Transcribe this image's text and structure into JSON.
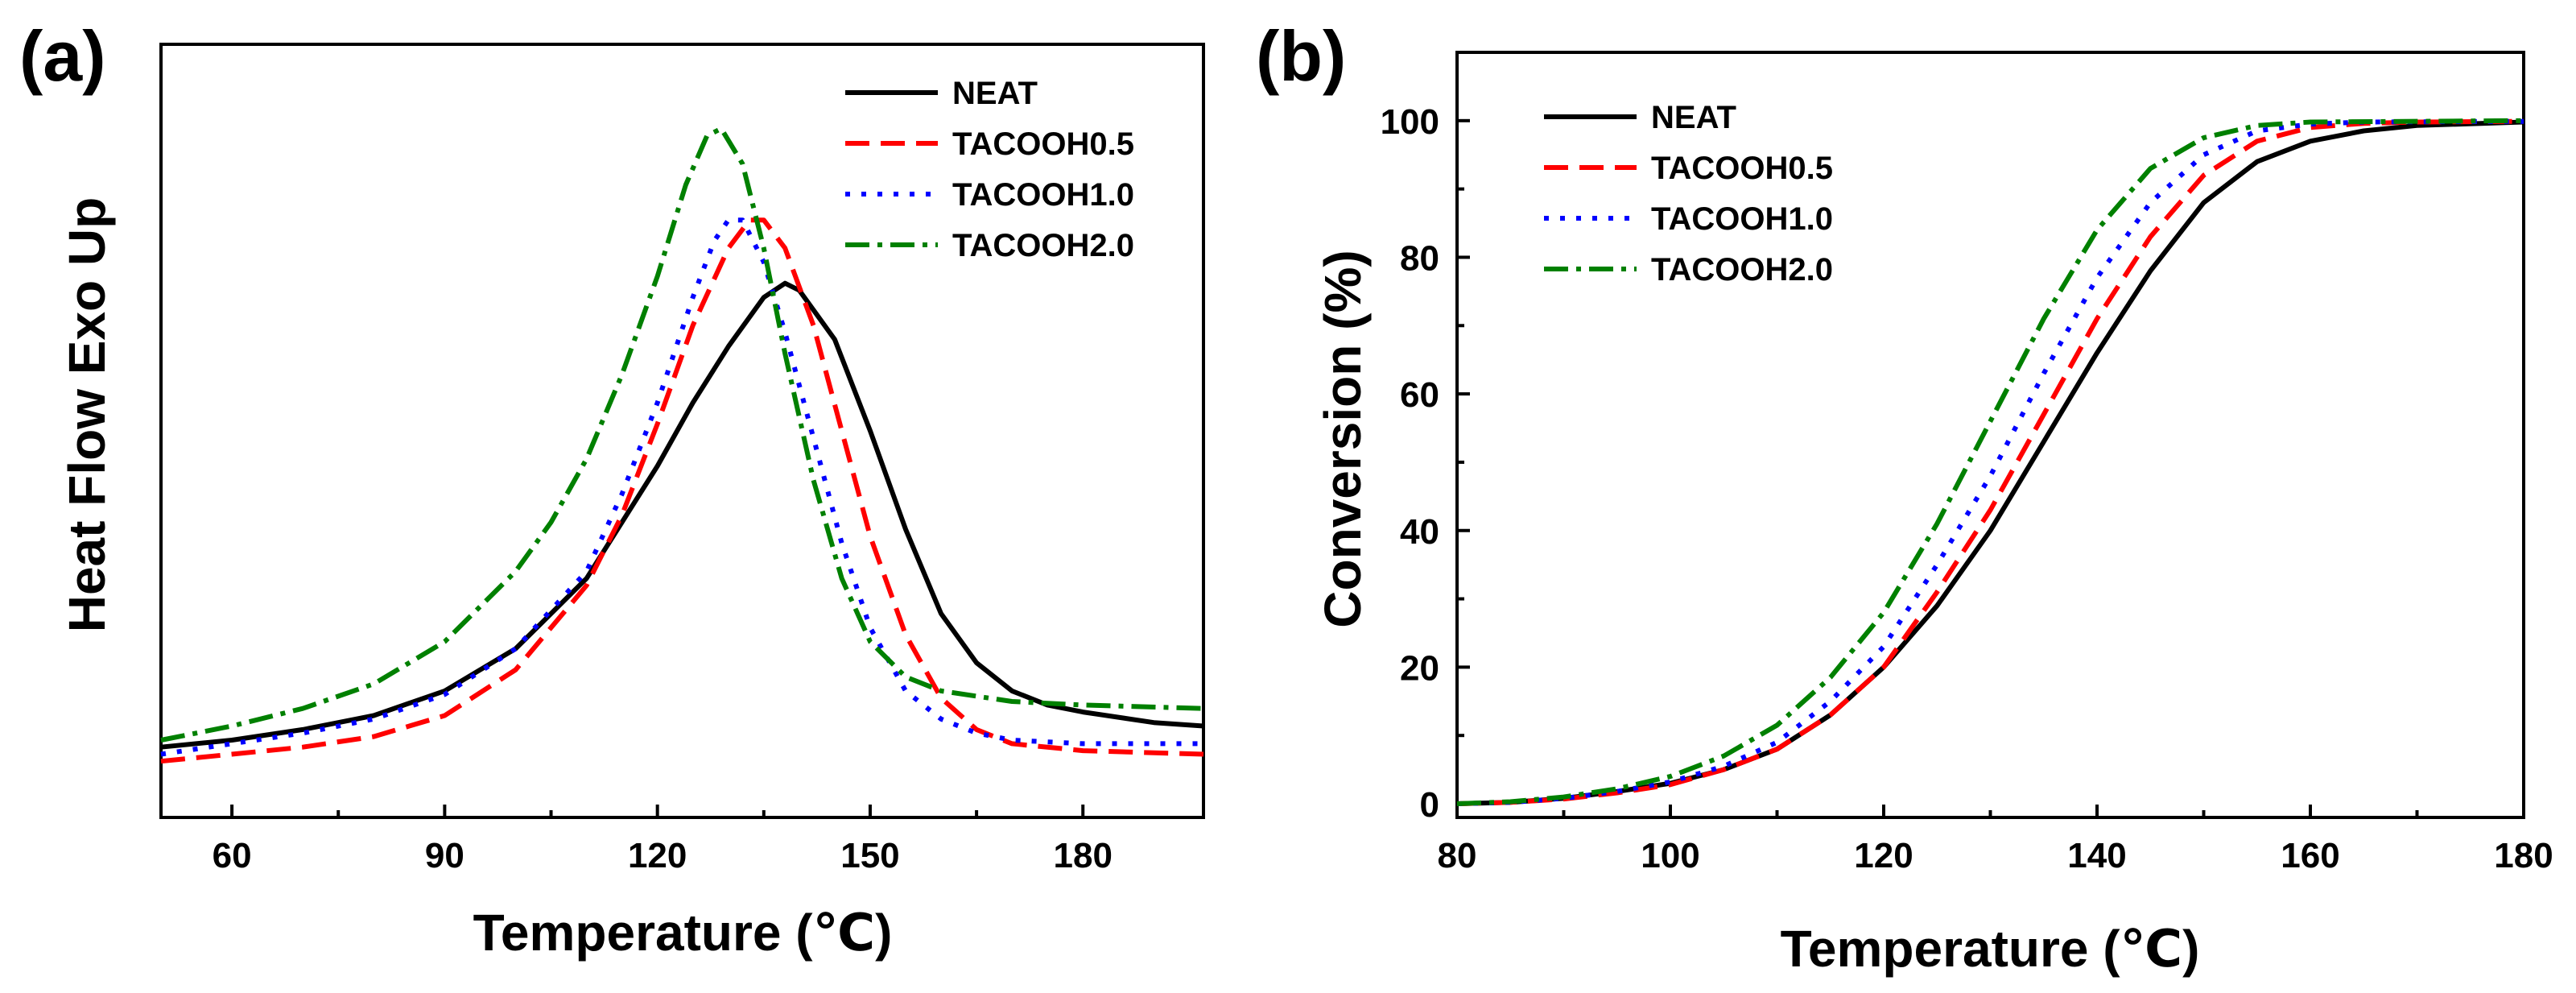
{
  "figure": {
    "colors": {
      "NEAT": "#000000",
      "TACOOH0.5": "#ff0000",
      "TACOOH1.0": "#0000ff",
      "TACOOH2.0": "#008000"
    }
  },
  "chart_data": [
    {
      "type": "line",
      "panel_label": "(a)",
      "title": "",
      "xlabel": "Temperature (℃)",
      "ylabel": "Heat Flow Exo Up",
      "xlim": [
        50,
        197
      ],
      "ylim": [
        -0.08,
        1.02
      ],
      "xticks": [
        60,
        90,
        120,
        150,
        180
      ],
      "yticks": [],
      "grid": false,
      "legend_position": "top-right",
      "series": [
        {
          "name": "NEAT",
          "style": "solid",
          "color": "#000000",
          "points": [
            [
              50,
              0.02
            ],
            [
              60,
              0.03
            ],
            [
              70,
              0.045
            ],
            [
              80,
              0.065
            ],
            [
              90,
              0.1
            ],
            [
              100,
              0.16
            ],
            [
              110,
              0.26
            ],
            [
              120,
              0.42
            ],
            [
              125,
              0.51
            ],
            [
              130,
              0.59
            ],
            [
              135,
              0.66
            ],
            [
              138,
              0.68
            ],
            [
              140,
              0.67
            ],
            [
              145,
              0.6
            ],
            [
              150,
              0.47
            ],
            [
              155,
              0.33
            ],
            [
              160,
              0.21
            ],
            [
              165,
              0.14
            ],
            [
              170,
              0.1
            ],
            [
              175,
              0.08
            ],
            [
              180,
              0.07
            ],
            [
              190,
              0.055
            ],
            [
              197,
              0.05
            ]
          ]
        },
        {
          "name": "TACOOH0.5",
          "style": "dashed",
          "color": "#ff0000",
          "points": [
            [
              50,
              0.0
            ],
            [
              60,
              0.01
            ],
            [
              70,
              0.02
            ],
            [
              80,
              0.035
            ],
            [
              90,
              0.065
            ],
            [
              100,
              0.13
            ],
            [
              110,
              0.25
            ],
            [
              115,
              0.35
            ],
            [
              120,
              0.48
            ],
            [
              125,
              0.62
            ],
            [
              130,
              0.73
            ],
            [
              133,
              0.77
            ],
            [
              135,
              0.77
            ],
            [
              138,
              0.73
            ],
            [
              142,
              0.62
            ],
            [
              146,
              0.47
            ],
            [
              150,
              0.32
            ],
            [
              155,
              0.18
            ],
            [
              160,
              0.09
            ],
            [
              165,
              0.045
            ],
            [
              170,
              0.025
            ],
            [
              180,
              0.015
            ],
            [
              197,
              0.01
            ]
          ]
        },
        {
          "name": "TACOOH1.0",
          "style": "dotted",
          "color": "#0000ff",
          "points": [
            [
              50,
              0.01
            ],
            [
              60,
              0.025
            ],
            [
              70,
              0.04
            ],
            [
              80,
              0.06
            ],
            [
              90,
              0.095
            ],
            [
              100,
              0.16
            ],
            [
              110,
              0.27
            ],
            [
              115,
              0.38
            ],
            [
              120,
              0.51
            ],
            [
              125,
              0.66
            ],
            [
              128,
              0.74
            ],
            [
              130,
              0.77
            ],
            [
              132,
              0.77
            ],
            [
              135,
              0.71
            ],
            [
              138,
              0.61
            ],
            [
              142,
              0.46
            ],
            [
              146,
              0.31
            ],
            [
              150,
              0.19
            ],
            [
              155,
              0.1
            ],
            [
              160,
              0.06
            ],
            [
              165,
              0.04
            ],
            [
              170,
              0.03
            ],
            [
              180,
              0.025
            ],
            [
              197,
              0.025
            ]
          ]
        },
        {
          "name": "TACOOH2.0",
          "style": "dash-dot",
          "color": "#008000",
          "points": [
            [
              50,
              0.03
            ],
            [
              60,
              0.05
            ],
            [
              70,
              0.075
            ],
            [
              80,
              0.11
            ],
            [
              90,
              0.17
            ],
            [
              100,
              0.27
            ],
            [
              105,
              0.34
            ],
            [
              110,
              0.43
            ],
            [
              115,
              0.55
            ],
            [
              120,
              0.69
            ],
            [
              124,
              0.82
            ],
            [
              127,
              0.89
            ],
            [
              129,
              0.9
            ],
            [
              132,
              0.85
            ],
            [
              135,
              0.73
            ],
            [
              138,
              0.58
            ],
            [
              142,
              0.4
            ],
            [
              146,
              0.26
            ],
            [
              150,
              0.17
            ],
            [
              155,
              0.12
            ],
            [
              160,
              0.1
            ],
            [
              170,
              0.085
            ],
            [
              180,
              0.08
            ],
            [
              197,
              0.075
            ]
          ]
        }
      ]
    },
    {
      "type": "line",
      "panel_label": "(b)",
      "title": "",
      "xlabel": "Temperature (℃)",
      "ylabel": "Conversion (%)",
      "xlim": [
        80,
        180
      ],
      "ylim": [
        -2,
        110
      ],
      "xticks": [
        80,
        100,
        120,
        140,
        160,
        180
      ],
      "yticks": [
        0,
        20,
        40,
        60,
        80,
        100
      ],
      "grid": false,
      "legend_position": "top-left",
      "series": [
        {
          "name": "NEAT",
          "style": "solid",
          "color": "#000000",
          "points": [
            [
              80,
              0
            ],
            [
              85,
              0.2
            ],
            [
              90,
              0.8
            ],
            [
              95,
              1.8
            ],
            [
              100,
              3
            ],
            [
              105,
              5
            ],
            [
              110,
              8
            ],
            [
              115,
              13
            ],
            [
              120,
              20
            ],
            [
              125,
              29
            ],
            [
              130,
              40
            ],
            [
              135,
              53
            ],
            [
              140,
              66
            ],
            [
              145,
              78
            ],
            [
              150,
              88
            ],
            [
              155,
              94
            ],
            [
              160,
              97
            ],
            [
              165,
              98.5
            ],
            [
              170,
              99.3
            ],
            [
              180,
              99.8
            ]
          ]
        },
        {
          "name": "TACOOH0.5",
          "style": "dashed",
          "color": "#ff0000",
          "points": [
            [
              80,
              0
            ],
            [
              85,
              0.2
            ],
            [
              90,
              0.7
            ],
            [
              95,
              1.6
            ],
            [
              100,
              2.8
            ],
            [
              105,
              5
            ],
            [
              110,
              8
            ],
            [
              115,
              13
            ],
            [
              120,
              20
            ],
            [
              125,
              31
            ],
            [
              130,
              43
            ],
            [
              135,
              57
            ],
            [
              140,
              71
            ],
            [
              145,
              83
            ],
            [
              150,
              92
            ],
            [
              155,
              97
            ],
            [
              160,
              99
            ],
            [
              165,
              99.6
            ],
            [
              170,
              99.8
            ],
            [
              180,
              99.9
            ]
          ]
        },
        {
          "name": "TACOOH1.0",
          "style": "dotted",
          "color": "#0000ff",
          "points": [
            [
              80,
              0
            ],
            [
              85,
              0.2
            ],
            [
              90,
              0.8
            ],
            [
              95,
              1.8
            ],
            [
              100,
              3.2
            ],
            [
              105,
              5.5
            ],
            [
              110,
              9
            ],
            [
              115,
              15
            ],
            [
              120,
              23
            ],
            [
              125,
              35
            ],
            [
              130,
              48
            ],
            [
              135,
              63
            ],
            [
              140,
              77
            ],
            [
              145,
              88
            ],
            [
              150,
              95
            ],
            [
              155,
              98.5
            ],
            [
              160,
              99.5
            ],
            [
              165,
              99.8
            ],
            [
              180,
              99.9
            ]
          ]
        },
        {
          "name": "TACOOH2.0",
          "style": "dash-dot",
          "color": "#008000",
          "points": [
            [
              80,
              0
            ],
            [
              85,
              0.3
            ],
            [
              90,
              1
            ],
            [
              95,
              2.2
            ],
            [
              100,
              4
            ],
            [
              105,
              7
            ],
            [
              110,
              11.5
            ],
            [
              115,
              18.5
            ],
            [
              120,
              28
            ],
            [
              125,
              41
            ],
            [
              130,
              56
            ],
            [
              135,
              71
            ],
            [
              140,
              84
            ],
            [
              145,
              93
            ],
            [
              150,
              97.5
            ],
            [
              155,
              99.3
            ],
            [
              160,
              99.8
            ],
            [
              180,
              100
            ]
          ]
        }
      ]
    }
  ]
}
